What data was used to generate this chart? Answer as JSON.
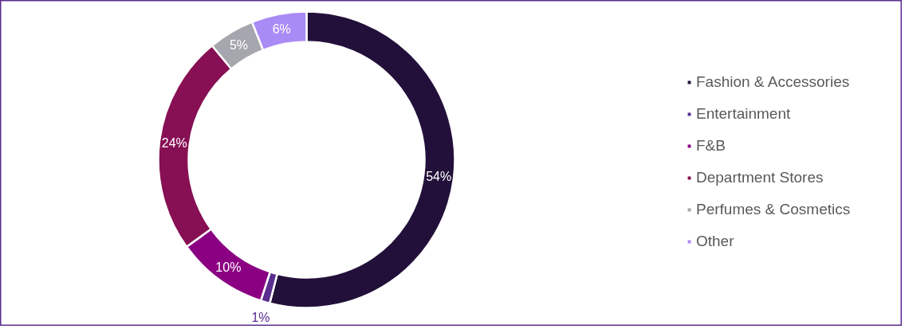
{
  "chart_data": {
    "type": "donut",
    "categories": [
      "Fashion & Accessories",
      "Entertainment",
      "F&B",
      "Department Stores",
      "Perfumes & Cosmetics",
      "Other"
    ],
    "values": [
      54,
      1,
      10,
      24,
      5,
      6
    ],
    "colors": [
      "#22103a",
      "#5b2e91",
      "#8b0083",
      "#870f54",
      "#a6a6ae",
      "#a98bf5"
    ],
    "value_labels": [
      "54%",
      "1%",
      "10%",
      "24%",
      "5%",
      "6%"
    ],
    "legend": "right"
  }
}
